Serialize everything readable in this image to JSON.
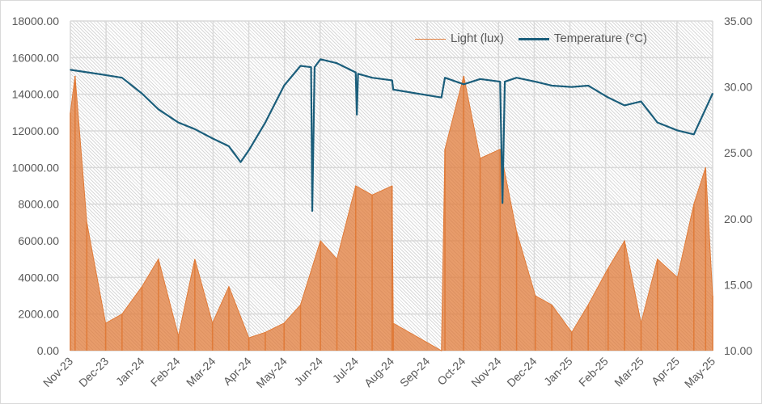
{
  "chart_data": {
    "type": "line",
    "title": "",
    "xlabel": "",
    "ylabel": "",
    "y2label": "",
    "x_tick_labels": [
      "Nov-23",
      "Dec-23",
      "Jan-24",
      "Feb-24",
      "Mar-24",
      "Apr-24",
      "May-24",
      "Jun-24",
      "Jul-24",
      "Aug-24",
      "Sep-24",
      "Oct-24",
      "Nov-24",
      "Dec-24",
      "Jan-25",
      "Feb-25",
      "Mar-25",
      "Apr-25",
      "May-25"
    ],
    "x_range": [
      "2023-11-01",
      "2025-05-01"
    ],
    "y_left": {
      "range": [
        0,
        18000
      ],
      "ticks": [
        "0.00",
        "2000.00",
        "4000.00",
        "6000.00",
        "8000.00",
        "10000.00",
        "12000.00",
        "14000.00",
        "16000.00",
        "18000.00"
      ]
    },
    "y_right": {
      "range": [
        10,
        35
      ],
      "ticks": [
        "10.00",
        "15.00",
        "20.00",
        "25.00",
        "30.00",
        "35.00"
      ]
    },
    "grid": true,
    "legend": "top-right",
    "series": [
      {
        "name": "Light (lux)",
        "axis": "left",
        "color": "#E07B39",
        "x": [
          "2023-11-01",
          "2023-11-05",
          "2023-11-15",
          "2023-12-01",
          "2023-12-15",
          "2024-01-01",
          "2024-01-15",
          "2024-02-01",
          "2024-02-15",
          "2024-03-01",
          "2024-03-15",
          "2024-04-01",
          "2024-04-15",
          "2024-05-01",
          "2024-05-15",
          "2024-06-01",
          "2024-06-15",
          "2024-07-01",
          "2024-07-15",
          "2024-08-01",
          "2024-08-02",
          "2024-09-12",
          "2024-09-15",
          "2024-10-01",
          "2024-10-15",
          "2024-11-01",
          "2024-11-15",
          "2024-12-01",
          "2024-12-15",
          "2025-01-01",
          "2025-01-15",
          "2025-02-01",
          "2025-02-15",
          "2025-03-01",
          "2025-03-15",
          "2025-04-01",
          "2025-04-15",
          "2025-04-25",
          "2025-05-01"
        ],
        "y": [
          13000,
          15000,
          7000,
          1500,
          2000,
          3500,
          5000,
          800,
          5000,
          1500,
          3500,
          700,
          1000,
          1500,
          2500,
          6000,
          5000,
          9000,
          8500,
          9000,
          1500,
          0,
          11000,
          15000,
          10500,
          11000,
          6500,
          3000,
          2500,
          1000,
          2500,
          4500,
          6000,
          1500,
          5000,
          4000,
          8000,
          10000,
          3000
        ]
      },
      {
        "name": "Temperature (°C)",
        "axis": "right",
        "color": "#1B5E7B",
        "x": [
          "2023-11-01",
          "2023-12-01",
          "2023-12-15",
          "2024-01-01",
          "2024-01-15",
          "2024-02-01",
          "2024-02-15",
          "2024-03-01",
          "2024-03-15",
          "2024-03-25",
          "2024-04-01",
          "2024-04-15",
          "2024-05-01",
          "2024-05-15",
          "2024-05-24",
          "2024-05-25",
          "2024-05-27",
          "2024-06-01",
          "2024-06-15",
          "2024-07-01",
          "2024-07-02",
          "2024-07-03",
          "2024-07-15",
          "2024-08-01",
          "2024-08-02",
          "2024-09-12",
          "2024-09-15",
          "2024-10-01",
          "2024-10-15",
          "2024-11-01",
          "2024-11-03",
          "2024-11-05",
          "2024-11-15",
          "2024-12-01",
          "2024-12-15",
          "2025-01-01",
          "2025-01-15",
          "2025-02-01",
          "2025-02-15",
          "2025-03-01",
          "2025-03-15",
          "2025-04-01",
          "2025-04-15",
          "2025-05-01"
        ],
        "y": [
          31.3,
          30.9,
          30.7,
          29.5,
          28.3,
          27.3,
          26.8,
          26.1,
          25.5,
          24.3,
          25.2,
          27.3,
          30.1,
          31.6,
          31.5,
          20.6,
          31.5,
          32.1,
          31.8,
          31.1,
          27.9,
          31.0,
          30.7,
          30.5,
          29.8,
          29.2,
          30.7,
          30.2,
          30.6,
          30.4,
          21.2,
          30.4,
          30.7,
          30.4,
          30.1,
          30.0,
          30.1,
          29.2,
          28.6,
          28.9,
          27.3,
          26.7,
          26.4,
          29.5
        ]
      }
    ]
  }
}
